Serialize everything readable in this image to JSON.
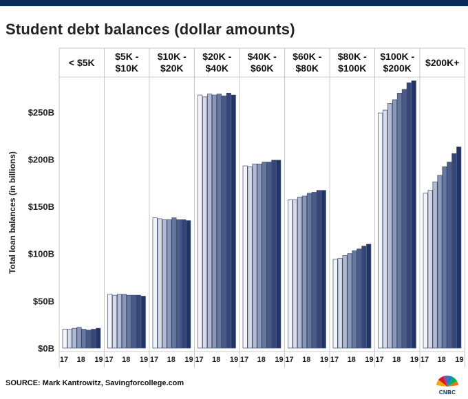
{
  "header": {
    "title": "Student debt balances (dollar amounts)"
  },
  "footer": {
    "source": "SOURCE: Mark Kantrowitz, Savingforcollege.com",
    "brand": "CNBC"
  },
  "colors": {
    "top_bar": "#0c2a59",
    "bar_palette": [
      "#f4f5f9",
      "#d6dbe7",
      "#b1bad0",
      "#8a97b8",
      "#67789f",
      "#4a5b89",
      "#34467a",
      "#223466"
    ]
  },
  "chart_data": {
    "type": "bar",
    "title": "Student debt balances (dollar amounts)",
    "ylabel": "Total loan balances (in billions)",
    "ylim": [
      0,
      287
    ],
    "yticks": [
      0,
      50,
      100,
      150,
      200,
      250
    ],
    "ytick_labels": [
      "$0B",
      "$50B",
      "$100B",
      "$150B",
      "$200B",
      "$250B"
    ],
    "grid": false,
    "x_tick_labels": [
      "17",
      "18",
      "19"
    ],
    "panels": [
      {
        "label": [
          "< $5K"
        ],
        "values": [
          20,
          20,
          21,
          22,
          20,
          19,
          20,
          21
        ]
      },
      {
        "label": [
          "$5K -",
          "$10K"
        ],
        "values": [
          57,
          56,
          57,
          57,
          56,
          56,
          56,
          55
        ]
      },
      {
        "label": [
          "$10K -",
          "$20K"
        ],
        "values": [
          138,
          137,
          136,
          136,
          138,
          136,
          136,
          135
        ]
      },
      {
        "label": [
          "$20K -",
          "$40K"
        ],
        "values": [
          268,
          266,
          269,
          268,
          269,
          267,
          270,
          268
        ]
      },
      {
        "label": [
          "$40K -",
          "$60K"
        ],
        "values": [
          193,
          192,
          195,
          195,
          197,
          197,
          199,
          199
        ]
      },
      {
        "label": [
          "$60K -",
          "$80K"
        ],
        "values": [
          157,
          157,
          160,
          161,
          164,
          165,
          167,
          167
        ]
      },
      {
        "label": [
          "$80K -",
          "$100K"
        ],
        "values": [
          94,
          95,
          98,
          100,
          103,
          105,
          108,
          110
        ]
      },
      {
        "label": [
          "$100K -",
          "$200K"
        ],
        "values": [
          249,
          252,
          259,
          263,
          270,
          274,
          281,
          283
        ]
      },
      {
        "label": [
          "$200K+"
        ],
        "values": [
          164,
          167,
          176,
          183,
          192,
          197,
          206,
          213
        ]
      }
    ]
  }
}
